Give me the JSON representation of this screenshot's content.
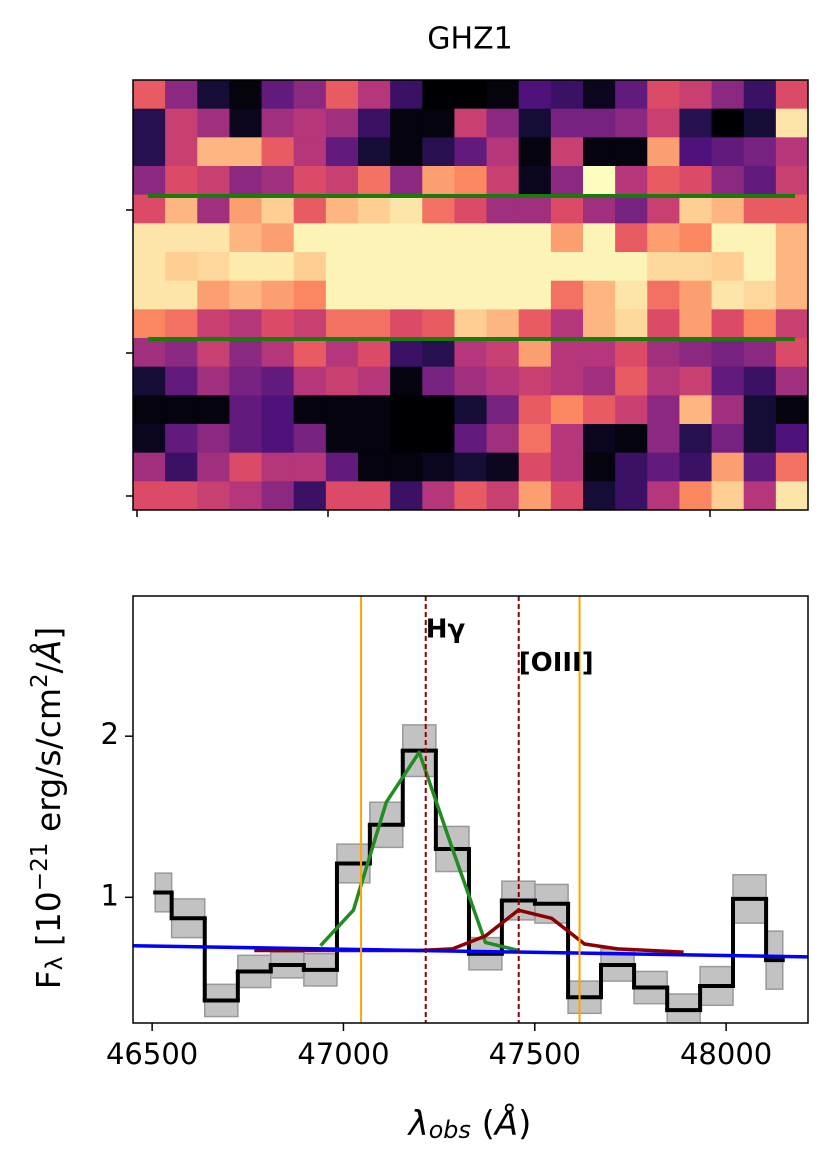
{
  "chart_data": [
    {
      "type": "heatmap",
      "title": "GHZ1",
      "colormap": [
        "#000004",
        "#1c1044",
        "#4f127b",
        "#812581",
        "#b5367a",
        "#e55064",
        "#fb8761",
        "#fec287",
        "#fcfdbf"
      ],
      "values": [
        [
          0.65,
          0.4,
          0.1,
          0.02,
          0.3,
          0.4,
          0.65,
          0.5,
          0.2,
          0.0,
          0.0,
          0.02,
          0.25,
          0.2,
          0.05,
          0.3,
          0.6,
          0.55,
          0.4,
          0.2,
          0.6
        ],
        [
          0.15,
          0.55,
          0.45,
          0.05,
          0.45,
          0.5,
          0.45,
          0.2,
          0.02,
          0.02,
          0.55,
          0.4,
          0.1,
          0.35,
          0.35,
          0.4,
          0.55,
          0.15,
          0.0,
          0.1,
          0.95
        ],
        [
          0.15,
          0.55,
          0.85,
          0.85,
          0.65,
          0.5,
          0.3,
          0.1,
          0.02,
          0.15,
          0.3,
          0.5,
          0.02,
          0.55,
          0.02,
          0.02,
          0.8,
          0.25,
          0.3,
          0.35,
          0.5
        ],
        [
          0.4,
          0.6,
          0.55,
          0.4,
          0.45,
          0.6,
          0.55,
          0.7,
          0.4,
          0.8,
          0.75,
          0.55,
          0.05,
          0.4,
          1.0,
          0.5,
          0.65,
          0.6,
          0.4,
          0.3,
          0.55
        ],
        [
          0.6,
          0.85,
          0.45,
          0.8,
          0.9,
          0.65,
          0.85,
          0.9,
          0.95,
          0.7,
          0.6,
          0.45,
          0.45,
          0.6,
          0.45,
          0.35,
          0.55,
          0.9,
          0.85,
          0.65,
          0.65
        ],
        [
          0.95,
          0.95,
          0.95,
          0.85,
          0.8,
          0.98,
          0.98,
          0.98,
          0.98,
          0.98,
          0.98,
          0.98,
          0.98,
          0.8,
          0.98,
          0.65,
          0.8,
          0.75,
          0.98,
          0.98,
          0.85
        ],
        [
          0.95,
          0.9,
          0.92,
          0.96,
          0.96,
          0.9,
          0.98,
          0.98,
          0.98,
          0.98,
          0.98,
          0.98,
          0.98,
          0.98,
          0.98,
          0.98,
          0.92,
          0.92,
          0.9,
          0.98,
          0.85
        ],
        [
          0.95,
          0.95,
          0.8,
          0.85,
          0.8,
          0.75,
          0.98,
          0.98,
          0.98,
          0.98,
          0.98,
          0.98,
          0.98,
          0.7,
          0.85,
          0.95,
          0.7,
          0.8,
          0.95,
          0.92,
          0.85
        ],
        [
          0.75,
          0.7,
          0.55,
          0.5,
          0.6,
          0.55,
          0.7,
          0.7,
          0.6,
          0.65,
          0.9,
          0.85,
          0.65,
          0.5,
          0.85,
          0.92,
          0.6,
          0.8,
          0.6,
          0.75,
          0.55
        ],
        [
          0.45,
          0.4,
          0.55,
          0.4,
          0.5,
          0.65,
          0.5,
          0.6,
          0.2,
          0.15,
          0.5,
          0.55,
          0.8,
          0.5,
          0.5,
          0.6,
          0.45,
          0.4,
          0.35,
          0.4,
          0.6
        ],
        [
          0.1,
          0.3,
          0.45,
          0.35,
          0.3,
          0.5,
          0.55,
          0.5,
          0.02,
          0.35,
          0.45,
          0.5,
          0.55,
          0.5,
          0.45,
          0.65,
          0.5,
          0.55,
          0.3,
          0.2,
          0.45
        ],
        [
          0.02,
          0.02,
          0.02,
          0.3,
          0.25,
          0.02,
          0.02,
          0.02,
          0.0,
          0.0,
          0.1,
          0.35,
          0.65,
          0.75,
          0.65,
          0.55,
          0.4,
          0.85,
          0.45,
          0.1,
          0.02
        ],
        [
          0.05,
          0.3,
          0.4,
          0.3,
          0.25,
          0.35,
          0.02,
          0.02,
          0.0,
          0.0,
          0.3,
          0.45,
          0.7,
          0.5,
          0.05,
          0.02,
          0.4,
          0.15,
          0.35,
          0.1,
          0.25
        ],
        [
          0.45,
          0.2,
          0.45,
          0.6,
          0.5,
          0.5,
          0.3,
          0.02,
          0.02,
          0.05,
          0.1,
          0.05,
          0.6,
          0.5,
          0.02,
          0.2,
          0.3,
          0.2,
          0.8,
          0.3,
          0.7
        ],
        [
          0.6,
          0.6,
          0.55,
          0.5,
          0.4,
          0.2,
          0.6,
          0.6,
          0.2,
          0.5,
          0.65,
          0.55,
          0.8,
          0.6,
          0.1,
          0.2,
          0.5,
          0.75,
          0.9,
          0.5,
          0.95
        ]
      ]
    },
    {
      "type": "line",
      "xlabel": [
        {
          "text": "λ",
          "italic": true
        },
        {
          "text": "obs",
          "italic": true,
          "sub": true
        },
        {
          "text": " ("
        },
        {
          "text": "Å",
          "italic": true
        },
        {
          "text": ")"
        }
      ],
      "ylabel": [
        {
          "text": "F"
        },
        {
          "text": "λ",
          "sub": true
        },
        {
          "text": " [10"
        },
        {
          "text": "−21",
          "sup": true
        },
        {
          "text": " erg/s/cm"
        },
        {
          "text": "2",
          "sup": true
        },
        {
          "text": "/"
        },
        {
          "text": "Å",
          "italic": true
        },
        {
          "text": "]"
        }
      ],
      "xlim": [
        46450,
        48214
      ],
      "ylim": [
        0.22,
        2.87
      ],
      "xticks": [
        46500,
        47000,
        47500,
        48000
      ],
      "yticks": [
        1,
        2
      ],
      "series": [
        {
          "style": "step",
          "color": "#000000",
          "error_color": "#999999",
          "x": [
            46508,
            46594,
            46681,
            46767,
            46853,
            46940,
            47026,
            47112,
            47198,
            47285,
            47371,
            47457,
            47544,
            47630,
            47716,
            47803,
            47889,
            47975,
            48061,
            48148
          ],
          "values": [
            1.03,
            0.87,
            0.36,
            0.54,
            0.58,
            0.55,
            1.21,
            1.45,
            1.91,
            1.3,
            0.65,
            0.98,
            0.96,
            0.38,
            0.58,
            0.44,
            0.3,
            0.45,
            0.99,
            0.61
          ],
          "errors": [
            0.12,
            0.12,
            0.1,
            0.1,
            0.08,
            0.1,
            0.12,
            0.14,
            0.16,
            0.14,
            0.1,
            0.12,
            0.12,
            0.1,
            0.1,
            0.1,
            0.1,
            0.12,
            0.15,
            0.18
          ]
        },
        {
          "style": "line",
          "color": "#228b22",
          "x": [
            46940,
            47026,
            47112,
            47198,
            47285,
            47371,
            47457
          ],
          "values": [
            0.7,
            0.92,
            1.59,
            1.9,
            1.3,
            0.72,
            0.67
          ]
        },
        {
          "style": "line",
          "color": "#8b0000",
          "x": [
            46767,
            46853,
            46940,
            47026,
            47112,
            47198,
            47285,
            47371,
            47457,
            47544,
            47630,
            47716,
            47803,
            47889
          ],
          "values": [
            0.67,
            0.67,
            0.67,
            0.67,
            0.67,
            0.67,
            0.68,
            0.76,
            0.92,
            0.87,
            0.71,
            0.68,
            0.67,
            0.66
          ]
        },
        {
          "style": "line",
          "color": "#0000ff",
          "x": [
            46450,
            48214
          ],
          "values": [
            0.7,
            0.63
          ]
        }
      ],
      "vlines": [
        {
          "x": 47046,
          "color": "#ffa500",
          "dashed": false
        },
        {
          "x": 47617,
          "color": "#ffa500",
          "dashed": false
        },
        {
          "x": 47215,
          "color": "#8b0000",
          "dashed": true
        },
        {
          "x": 47458,
          "color": "#8b0000",
          "dashed": true
        }
      ],
      "annotations": [
        {
          "text": "Hγ",
          "x": 47215,
          "y": 2.66
        },
        {
          "text": "[OIII]",
          "x": 47458,
          "y": 2.45
        }
      ]
    }
  ]
}
